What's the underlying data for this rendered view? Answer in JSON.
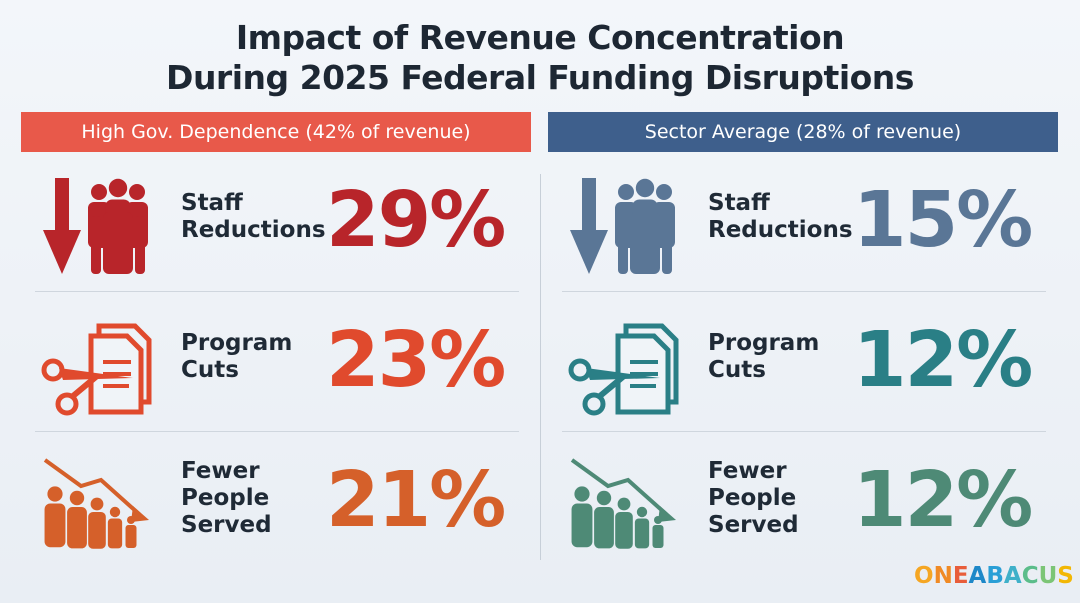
{
  "title_line1": "Impact of Revenue Concentration",
  "title_line2": "During 2025 Federal Funding Disruptions",
  "logo_text": "ONEABACUS",
  "chart_data": {
    "type": "table",
    "title": "Impact of Revenue Concentration During 2025 Federal Funding Disruptions",
    "columns": [
      {
        "header": "High Gov. Dependence (42% of revenue)",
        "header_color": "#e8594a",
        "rows": [
          {
            "label_lines": [
              "Staff",
              "Reductions"
            ],
            "value": "29%",
            "number": 29,
            "color": "#b8252a",
            "icon": "down-arrow-people-icon"
          },
          {
            "label_lines": [
              "Program",
              "Cuts"
            ],
            "value": "23%",
            "number": 23,
            "color": "#e04a2d",
            "icon": "scissors-document-icon"
          },
          {
            "label_lines": [
              "Fewer",
              "People",
              "Served"
            ],
            "value": "21%",
            "number": 21,
            "color": "#d5602a",
            "icon": "declining-people-icon"
          }
        ]
      },
      {
        "header": "Sector Average (28% of revenue)",
        "header_color": "#3e5f8c",
        "rows": [
          {
            "label_lines": [
              "Staff",
              "Reductions"
            ],
            "value": "15%",
            "number": 15,
            "color": "#5a7696",
            "icon": "down-arrow-people-icon"
          },
          {
            "label_lines": [
              "Program",
              "Cuts"
            ],
            "value": "12%",
            "number": 12,
            "color": "#2a7f86",
            "icon": "scissors-document-icon"
          },
          {
            "label_lines": [
              "Fewer",
              "People",
              "Served"
            ],
            "value": "12%",
            "number": 12,
            "color": "#4e8a76",
            "icon": "declining-people-icon"
          }
        ]
      }
    ]
  }
}
